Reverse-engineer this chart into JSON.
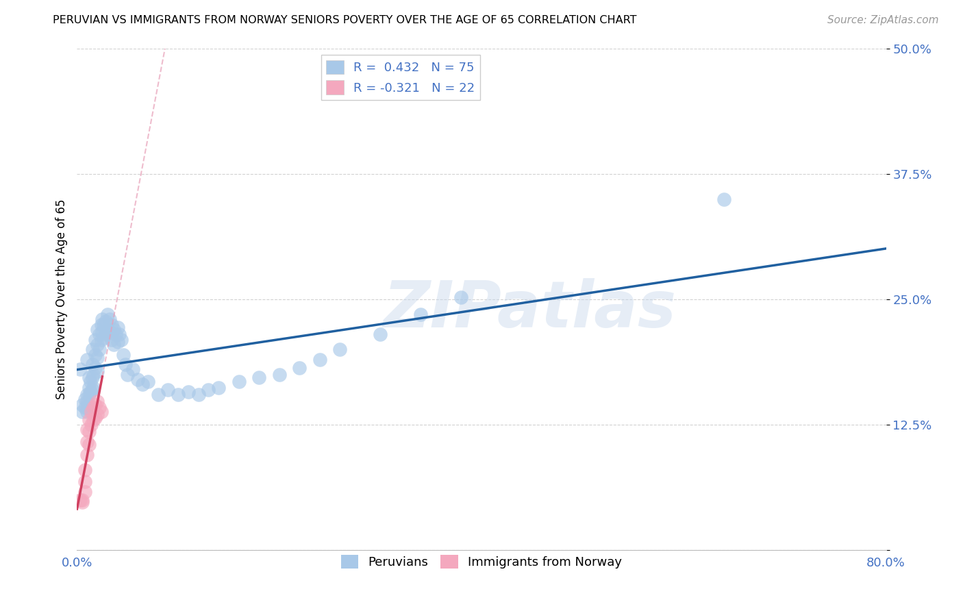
{
  "title": "PERUVIAN VS IMMIGRANTS FROM NORWAY SENIORS POVERTY OVER THE AGE OF 65 CORRELATION CHART",
  "source": "Source: ZipAtlas.com",
  "ylabel": "Seniors Poverty Over the Age of 65",
  "xlim": [
    0.0,
    0.8
  ],
  "ylim": [
    0.0,
    0.5
  ],
  "xticks": [
    0.0,
    0.2,
    0.4,
    0.6,
    0.8
  ],
  "xticklabels": [
    "0.0%",
    "",
    "",
    "",
    "80.0%"
  ],
  "yticks": [
    0.0,
    0.125,
    0.25,
    0.375,
    0.5
  ],
  "yticklabels": [
    "",
    "12.5%",
    "25.0%",
    "37.5%",
    "50.0%"
  ],
  "blue_R": 0.432,
  "blue_N": 75,
  "pink_R": -0.321,
  "pink_N": 22,
  "blue_color": "#A8C8E8",
  "blue_line_color": "#2060A0",
  "pink_color": "#F4A8BE",
  "pink_line_color": "#D04060",
  "pink_dash_color": "#E8A0B8",
  "watermark": "ZIPatlas",
  "blue_scatter_x": [
    0.005,
    0.005,
    0.008,
    0.008,
    0.01,
    0.01,
    0.01,
    0.01,
    0.01,
    0.012,
    0.012,
    0.012,
    0.013,
    0.013,
    0.015,
    0.015,
    0.015,
    0.015,
    0.016,
    0.016,
    0.018,
    0.018,
    0.018,
    0.02,
    0.02,
    0.02,
    0.02,
    0.022,
    0.022,
    0.024,
    0.024,
    0.025,
    0.025,
    0.026,
    0.026,
    0.028,
    0.028,
    0.03,
    0.03,
    0.032,
    0.032,
    0.034,
    0.034,
    0.036,
    0.036,
    0.038,
    0.04,
    0.04,
    0.042,
    0.044,
    0.046,
    0.048,
    0.05,
    0.055,
    0.06,
    0.065,
    0.07,
    0.08,
    0.09,
    0.1,
    0.11,
    0.12,
    0.13,
    0.14,
    0.16,
    0.18,
    0.2,
    0.22,
    0.24,
    0.26,
    0.3,
    0.34,
    0.38,
    0.64,
    0.003
  ],
  "blue_scatter_y": [
    0.145,
    0.138,
    0.15,
    0.142,
    0.19,
    0.155,
    0.148,
    0.142,
    0.138,
    0.172,
    0.162,
    0.155,
    0.168,
    0.158,
    0.2,
    0.185,
    0.172,
    0.16,
    0.175,
    0.162,
    0.21,
    0.195,
    0.182,
    0.22,
    0.205,
    0.192,
    0.178,
    0.215,
    0.2,
    0.225,
    0.21,
    0.23,
    0.218,
    0.225,
    0.212,
    0.228,
    0.215,
    0.235,
    0.22,
    0.23,
    0.218,
    0.225,
    0.21,
    0.22,
    0.205,
    0.215,
    0.222,
    0.208,
    0.215,
    0.21,
    0.195,
    0.185,
    0.175,
    0.18,
    0.17,
    0.165,
    0.168,
    0.155,
    0.16,
    0.155,
    0.158,
    0.155,
    0.16,
    0.162,
    0.168,
    0.172,
    0.175,
    0.182,
    0.19,
    0.2,
    0.215,
    0.235,
    0.252,
    0.35,
    0.18
  ],
  "pink_scatter_x": [
    0.003,
    0.005,
    0.005,
    0.008,
    0.008,
    0.008,
    0.01,
    0.01,
    0.01,
    0.012,
    0.012,
    0.012,
    0.014,
    0.014,
    0.016,
    0.016,
    0.018,
    0.018,
    0.02,
    0.02,
    0.022,
    0.024
  ],
  "pink_scatter_y": [
    0.05,
    0.05,
    0.048,
    0.08,
    0.068,
    0.058,
    0.12,
    0.108,
    0.095,
    0.13,
    0.118,
    0.105,
    0.138,
    0.125,
    0.142,
    0.13,
    0.145,
    0.132,
    0.148,
    0.135,
    0.142,
    0.138
  ]
}
